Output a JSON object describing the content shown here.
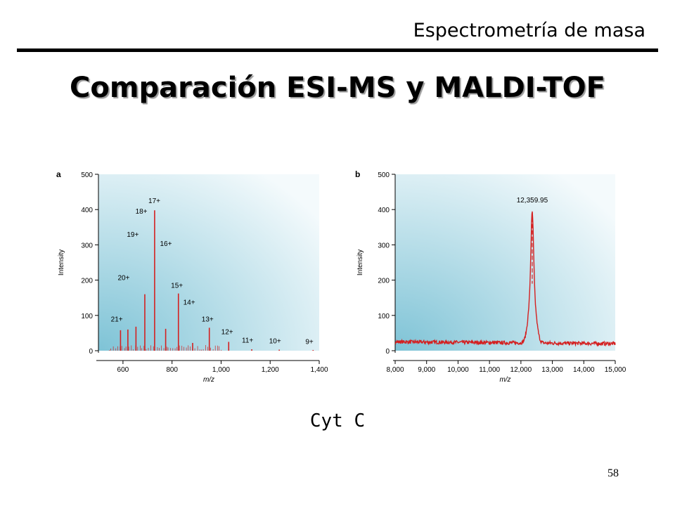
{
  "header": {
    "section_title": "Espectrometría de masa"
  },
  "slide": {
    "title": "Comparación ESI-MS y MALDI-TOF",
    "caption": "Cyt C",
    "page_number": "58"
  },
  "colors": {
    "spectrum": "#d42020",
    "panel_bg_dark": "#7ec3d6",
    "panel_bg_light": "#f4fafc"
  },
  "chart_data": [
    {
      "type": "line",
      "panel_label": "a",
      "xlabel": "m/z",
      "ylabel": "Intensity",
      "xlim": [
        500,
        1400
      ],
      "ylim": [
        0,
        500
      ],
      "xticks": [
        600,
        800,
        1000,
        1200,
        1400
      ],
      "xtick_labels": [
        "600",
        "800",
        "1,000",
        "1,200",
        "1,400"
      ],
      "yticks": [
        0,
        100,
        200,
        300,
        400,
        500
      ],
      "ytick_labels": [
        "0",
        "100",
        "200",
        "300",
        "400",
        "500"
      ],
      "peaks": [
        {
          "label": "21+",
          "x": 590,
          "y": 58
        },
        {
          "label": "20+",
          "x": 620,
          "y": 60
        },
        {
          "label": "19+",
          "x": 653,
          "y": 68
        },
        {
          "label": "18+",
          "x": 689,
          "y": 160
        },
        {
          "label": "17+",
          "x": 729,
          "y": 398
        },
        {
          "label": "16+",
          "x": 774,
          "y": 62
        },
        {
          "label": "15+",
          "x": 826,
          "y": 162
        },
        {
          "label": "14+",
          "x": 884,
          "y": 22
        },
        {
          "label": "13+",
          "x": 952,
          "y": 65
        },
        {
          "label": "12+",
          "x": 1031,
          "y": 25
        },
        {
          "label": "11+",
          "x": 1125,
          "y": 4
        },
        {
          "label": "10+",
          "x": 1237,
          "y": 3
        },
        {
          "label": "9+",
          "x": 1375,
          "y": 2
        }
      ],
      "peak_annotations": [
        {
          "text": "17+",
          "x": 728,
          "y": 418
        },
        {
          "text": "18+",
          "x": 675,
          "y": 388
        },
        {
          "text": "19+",
          "x": 640,
          "y": 323
        },
        {
          "text": "16+",
          "x": 775,
          "y": 297
        },
        {
          "text": "20+",
          "x": 603,
          "y": 200
        },
        {
          "text": "15+",
          "x": 820,
          "y": 178
        },
        {
          "text": "14+",
          "x": 870,
          "y": 130
        },
        {
          "text": "21+",
          "x": 575,
          "y": 83
        },
        {
          "text": "13+",
          "x": 945,
          "y": 83
        },
        {
          "text": "12+",
          "x": 1025,
          "y": 47
        },
        {
          "text": "11+",
          "x": 1108,
          "y": 23
        },
        {
          "text": "10+",
          "x": 1220,
          "y": 21
        },
        {
          "text": "9+",
          "x": 1360,
          "y": 19
        }
      ]
    },
    {
      "type": "line",
      "panel_label": "b",
      "xlabel": "m/z",
      "ylabel": "Intensity",
      "xlim": [
        8000,
        15000
      ],
      "ylim": [
        0,
        500
      ],
      "xticks": [
        8000,
        9000,
        10000,
        11000,
        12000,
        13000,
        14000,
        15000
      ],
      "xtick_labels": [
        "8,000",
        "9,000",
        "10,000",
        "11,000",
        "12,000",
        "13,000",
        "14,000",
        "15,000"
      ],
      "yticks": [
        0,
        100,
        200,
        300,
        400,
        500
      ],
      "ytick_labels": [
        "0",
        "100",
        "200",
        "300",
        "400",
        "500"
      ],
      "baseline": 25,
      "peak": {
        "x": 12359.95,
        "y": 395
      },
      "peak_annotations": [
        {
          "text": "12,359.95",
          "x": 12359.95,
          "y": 420
        }
      ]
    }
  ]
}
